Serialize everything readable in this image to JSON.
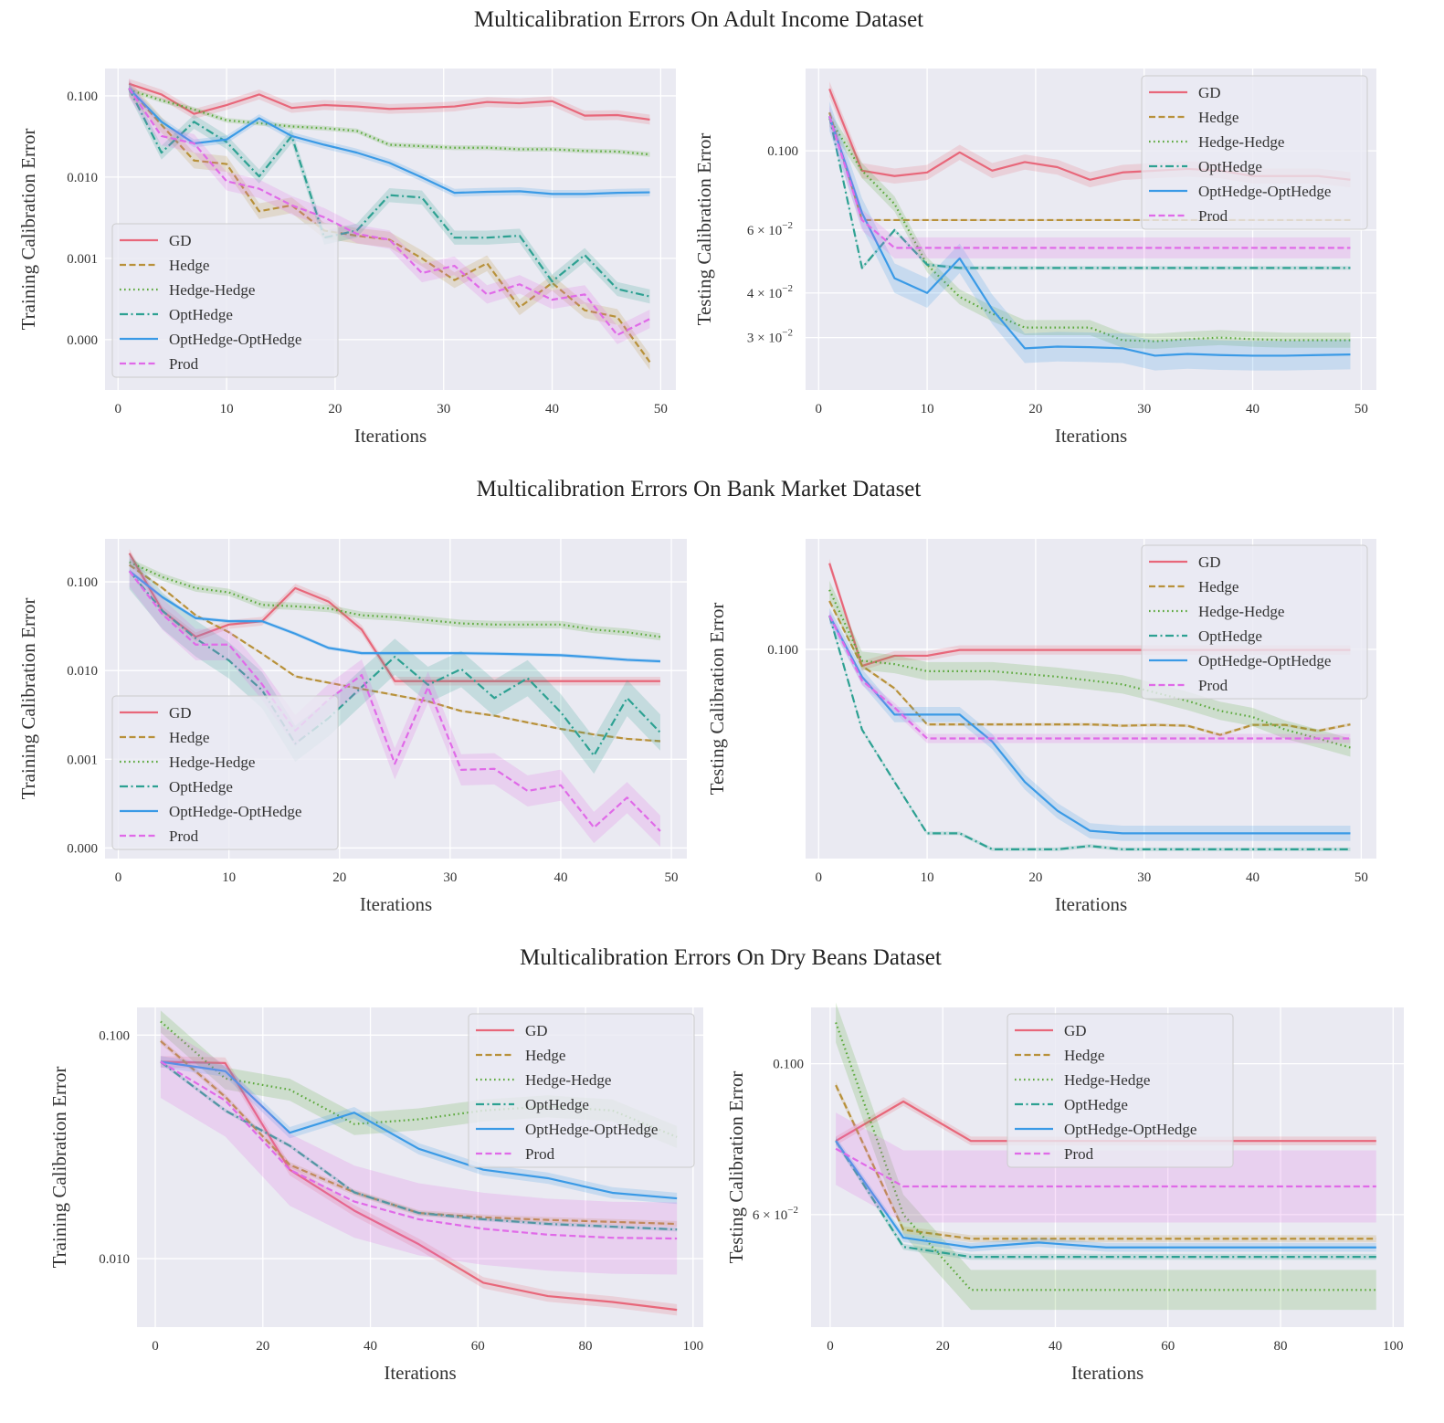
{
  "figure_titles": [
    "Multicalibration Errors On Adult Income Dataset",
    "Multicalibration Errors On Bank Market Dataset",
    "Multicalibration Errors On Dry Beans Dataset"
  ],
  "series_colors": {
    "GD": "#e8677a",
    "Hedge": "#b8913a",
    "Hedge-Hedge": "#5aa83a",
    "OptHedge": "#2da192",
    "OptHedge-OptHedge": "#3a9ae6",
    "Prod": "#e06ae8"
  },
  "series_styles": {
    "GD": "solid",
    "Hedge": "dashed",
    "Hedge-Hedge": "dotted",
    "OptHedge": "dashdot",
    "OptHedge-OptHedge": "solid",
    "Prod": "dashed"
  },
  "background": "#eaeaf2",
  "chart_data": [
    {
      "type": "line",
      "dataset_title_index": 0,
      "xlabel": "Iterations",
      "ylabel": "Training Calibration Error",
      "yscale": "log",
      "grid": true,
      "legend": "lower-left",
      "xlim": [
        -1.2,
        51.4
      ],
      "ylim": [
        2.4e-05,
        0.217
      ],
      "xticks": [
        0,
        10,
        20,
        30,
        40,
        50
      ],
      "yticks": [
        {
          "value": 0.1,
          "label": "0.100"
        },
        {
          "value": 0.01,
          "label": "0.010"
        },
        {
          "value": 0.001,
          "label": "0.001"
        },
        {
          "value": 0.0001,
          "label": "0.000"
        }
      ],
      "x": [
        1,
        4,
        7,
        10,
        13,
        16,
        19,
        22,
        25,
        28,
        31,
        34,
        37,
        40,
        43,
        46,
        49
      ],
      "series": [
        {
          "name": "GD",
          "ci": 1.15,
          "values": [
            0.141,
            0.104,
            0.06,
            0.077,
            0.104,
            0.071,
            0.077,
            0.074,
            0.069,
            0.071,
            0.074,
            0.084,
            0.081,
            0.086,
            0.057,
            0.058,
            0.051
          ]
        },
        {
          "name": "Hedge",
          "ci": 1.25,
          "values": [
            0.124,
            0.044,
            0.016,
            0.0145,
            0.0038,
            0.0045,
            0.0022,
            0.0019,
            0.0017,
            0.001,
            0.00054,
            0.00087,
            0.00025,
            0.0005,
            0.00023,
            0.00019,
            5.3e-05
          ]
        },
        {
          "name": "Hedge-Hedge",
          "ci": 1.07,
          "values": [
            0.119,
            0.088,
            0.068,
            0.05,
            0.046,
            0.042,
            0.04,
            0.037,
            0.025,
            0.024,
            0.023,
            0.023,
            0.022,
            0.022,
            0.021,
            0.0206,
            0.019
          ]
        },
        {
          "name": "OptHedge",
          "ci": 1.22,
          "values": [
            0.124,
            0.02,
            0.048,
            0.027,
            0.0102,
            0.032,
            0.0018,
            0.0022,
            0.006,
            0.0056,
            0.0018,
            0.0018,
            0.0019,
            0.00052,
            0.0011,
            0.00042,
            0.00034
          ]
        },
        {
          "name": "OptHedge-OptHedge",
          "ci": 1.12,
          "values": [
            0.124,
            0.048,
            0.026,
            0.029,
            0.053,
            0.032,
            0.025,
            0.02,
            0.015,
            0.0099,
            0.0064,
            0.0066,
            0.0067,
            0.0062,
            0.0062,
            0.0064,
            0.0065
          ]
        },
        {
          "name": "Prod",
          "ci": 1.3,
          "values": [
            0.124,
            0.032,
            0.026,
            0.0089,
            0.0072,
            0.0045,
            0.0032,
            0.002,
            0.0017,
            0.00066,
            0.00081,
            0.00036,
            0.00048,
            0.00031,
            0.00036,
            0.000114,
            0.00018
          ]
        }
      ]
    },
    {
      "type": "line",
      "dataset_title_index": 0,
      "xlabel": "Iterations",
      "ylabel": "Testing Calibration Error",
      "yscale": "log",
      "grid": true,
      "legend": "upper-right",
      "xlim": [
        -1.2,
        51.4
      ],
      "ylim": [
        0.0214,
        0.17
      ],
      "xticks": [
        0,
        10,
        20,
        30,
        40,
        50
      ],
      "yticks": [
        {
          "value": 0.1,
          "label": "0.100"
        },
        {
          "value": 0.06,
          "label": "6 × 10^−2"
        },
        {
          "value": 0.04,
          "label": "4 × 10^−2"
        },
        {
          "value": 0.03,
          "label": "3 × 10^−2"
        }
      ],
      "x": [
        1,
        4,
        7,
        10,
        13,
        16,
        19,
        22,
        25,
        28,
        31,
        34,
        37,
        40,
        43,
        46,
        49
      ],
      "series": [
        {
          "name": "GD",
          "ci": 1.05,
          "values": [
            0.149,
            0.088,
            0.085,
            0.087,
            0.099,
            0.088,
            0.093,
            0.09,
            0.083,
            0.087,
            0.088,
            0.089,
            0.088,
            0.085,
            0.085,
            0.085,
            0.083
          ]
        },
        {
          "name": "Hedge",
          "ci": 1.006,
          "values": [
            0.128,
            0.064,
            0.064,
            0.064,
            0.064,
            0.064,
            0.064,
            0.064,
            0.064,
            0.064,
            0.064,
            0.064,
            0.064,
            0.064,
            0.064,
            0.064,
            0.064
          ]
        },
        {
          "name": "Hedge-Hedge",
          "ci": 1.05,
          "values": [
            0.123,
            0.088,
            0.071,
            0.048,
            0.039,
            0.035,
            0.032,
            0.032,
            0.032,
            0.0295,
            0.0293,
            0.0297,
            0.03,
            0.0297,
            0.0295,
            0.0295,
            0.0295
          ]
        },
        {
          "name": "OptHedge",
          "ci": 1.012,
          "values": [
            0.125,
            0.047,
            0.06,
            0.048,
            0.047,
            0.047,
            0.047,
            0.047,
            0.047,
            0.047,
            0.047,
            0.047,
            0.047,
            0.047,
            0.047,
            0.047,
            0.047
          ]
        },
        {
          "name": "OptHedge-OptHedge",
          "ci": 1.1,
          "values": [
            0.125,
            0.067,
            0.044,
            0.04,
            0.05,
            0.036,
            0.028,
            0.0283,
            0.0282,
            0.028,
            0.0267,
            0.027,
            0.0268,
            0.0267,
            0.0267,
            0.0268,
            0.0269
          ]
        },
        {
          "name": "Prod",
          "ci": 1.07,
          "values": [
            0.125,
            0.064,
            0.0535,
            0.0535,
            0.0535,
            0.0535,
            0.0535,
            0.0535,
            0.0535,
            0.0535,
            0.0535,
            0.0535,
            0.0535,
            0.0535,
            0.0535,
            0.0535,
            0.0535
          ]
        }
      ]
    },
    {
      "type": "line",
      "dataset_title_index": 1,
      "xlabel": "Iterations",
      "ylabel": "Training Calibration Error",
      "yscale": "log",
      "grid": true,
      "legend": "lower-left",
      "xlim": [
        -1.2,
        51.4
      ],
      "ylim": [
        7.6e-05,
        0.305
      ],
      "xticks": [
        0,
        10,
        20,
        30,
        40,
        50
      ],
      "yticks": [
        {
          "value": 0.1,
          "label": "0.100"
        },
        {
          "value": 0.01,
          "label": "0.010"
        },
        {
          "value": 0.001,
          "label": "0.001"
        },
        {
          "value": 0.0001,
          "label": "0.000"
        }
      ],
      "x": [
        1,
        4,
        7,
        10,
        13,
        16,
        19,
        22,
        25,
        28,
        31,
        34,
        37,
        40,
        43,
        46,
        49
      ],
      "series": [
        {
          "name": "GD",
          "ci": 1.12,
          "values": [
            0.21,
            0.047,
            0.024,
            0.033,
            0.036,
            0.085,
            0.06,
            0.029,
            0.0076,
            0.0076,
            0.0076,
            0.0076,
            0.0076,
            0.0076,
            0.0076,
            0.0076,
            0.0076
          ]
        },
        {
          "name": "Hedge",
          "ci": 1.03,
          "values": [
            0.155,
            0.085,
            0.042,
            0.027,
            0.0155,
            0.0086,
            0.0073,
            0.0062,
            0.0053,
            0.0045,
            0.0035,
            0.0031,
            0.0026,
            0.0022,
            0.0019,
            0.0017,
            0.0016
          ]
        },
        {
          "name": "Hedge-Hedge",
          "ci": 1.1,
          "values": [
            0.167,
            0.113,
            0.085,
            0.076,
            0.055,
            0.053,
            0.05,
            0.042,
            0.04,
            0.037,
            0.034,
            0.033,
            0.033,
            0.033,
            0.029,
            0.027,
            0.024
          ]
        },
        {
          "name": "OptHedge",
          "ci": 1.6,
          "values": [
            0.132,
            0.047,
            0.023,
            0.013,
            0.006,
            0.0015,
            0.0029,
            0.0065,
            0.0143,
            0.0069,
            0.0104,
            0.0049,
            0.0082,
            0.0034,
            0.0011,
            0.0049,
            0.002
          ]
        },
        {
          "name": "OptHedge-OptHedge",
          "ci": 1.05,
          "values": [
            0.132,
            0.067,
            0.039,
            0.036,
            0.036,
            0.026,
            0.018,
            0.0157,
            0.0157,
            0.0157,
            0.0157,
            0.0155,
            0.0152,
            0.0149,
            0.0141,
            0.0132,
            0.0127
          ]
        },
        {
          "name": "Prod",
          "ci": 1.5,
          "values": [
            0.132,
            0.043,
            0.0196,
            0.0196,
            0.007,
            0.0021,
            0.0047,
            0.0089,
            0.00089,
            0.0065,
            0.00076,
            0.00078,
            0.00044,
            0.00051,
            0.00017,
            0.00037,
            0.000155
          ]
        }
      ]
    },
    {
      "type": "line",
      "dataset_title_index": 1,
      "xlabel": "Iterations",
      "ylabel": "Testing Calibration Error",
      "yscale": "log",
      "grid": true,
      "legend": "upper-right",
      "xlim": [
        -1.2,
        51.4
      ],
      "ylim": [
        0.0264,
        0.202
      ],
      "xticks": [
        0,
        10,
        20,
        30,
        40,
        50
      ],
      "yticks": [
        {
          "value": 0.1,
          "label": "0.100"
        }
      ],
      "x": [
        1,
        4,
        7,
        10,
        13,
        16,
        19,
        22,
        25,
        28,
        31,
        34,
        37,
        40,
        43,
        46,
        49
      ],
      "series": [
        {
          "name": "GD",
          "ci": 1.03,
          "values": [
            0.173,
            0.09,
            0.096,
            0.096,
            0.0996,
            0.0996,
            0.0996,
            0.0996,
            0.0996,
            0.0996,
            0.0996,
            0.0996,
            0.0996,
            0.0996,
            0.0996,
            0.0996,
            0.0996
          ]
        },
        {
          "name": "Hedge",
          "ci": 1.01,
          "values": [
            0.136,
            0.09,
            0.078,
            0.062,
            0.062,
            0.062,
            0.062,
            0.062,
            0.062,
            0.0615,
            0.0618,
            0.0615,
            0.058,
            0.0618,
            0.0618,
            0.0595,
            0.062
          ]
        },
        {
          "name": "Hedge-Hedge",
          "ci": 1.06,
          "values": [
            0.146,
            0.093,
            0.091,
            0.087,
            0.087,
            0.087,
            0.0855,
            0.084,
            0.082,
            0.08,
            0.076,
            0.072,
            0.0676,
            0.065,
            0.06,
            0.0567,
            0.0535
          ]
        },
        {
          "name": "OptHedge",
          "ci": 1.012,
          "values": [
            0.124,
            0.06,
            0.043,
            0.031,
            0.031,
            0.028,
            0.028,
            0.028,
            0.0286,
            0.028,
            0.028,
            0.028,
            0.028,
            0.028,
            0.028,
            0.028,
            0.028
          ]
        },
        {
          "name": "OptHedge-OptHedge",
          "ci": 1.05,
          "values": [
            0.124,
            0.084,
            0.066,
            0.066,
            0.066,
            0.0556,
            0.043,
            0.0358,
            0.0315,
            0.031,
            0.031,
            0.031,
            0.031,
            0.031,
            0.031,
            0.031,
            0.031
          ]
        },
        {
          "name": "Prod",
          "ci": 1.03,
          "values": [
            0.124,
            0.082,
            0.069,
            0.0567,
            0.0567,
            0.0567,
            0.0567,
            0.0567,
            0.0567,
            0.0567,
            0.0567,
            0.0567,
            0.0567,
            0.0567,
            0.0567,
            0.0567,
            0.0567
          ]
        }
      ]
    },
    {
      "type": "line",
      "dataset_title_index": 2,
      "xlabel": "Iterations",
      "ylabel": "Training Calibration Error",
      "yscale": "log",
      "grid": true,
      "legend": "upper-right",
      "xlim": [
        -3.4,
        101.9
      ],
      "ylim": [
        0.00494,
        0.133
      ],
      "xticks": [
        0,
        20,
        40,
        60,
        80,
        100
      ],
      "yticks": [
        {
          "value": 0.1,
          "label": "0.100"
        },
        {
          "value": 0.01,
          "label": "0.010"
        }
      ],
      "x": [
        1,
        13,
        25,
        37,
        49,
        61,
        73,
        85,
        97
      ],
      "series": [
        {
          "name": "GD",
          "ci": 1.06,
          "values": [
            0.076,
            0.075,
            0.025,
            0.0164,
            0.0116,
            0.0078,
            0.0068,
            0.0064,
            0.0059
          ]
        },
        {
          "name": "Hedge",
          "ci": 1.03,
          "values": [
            0.094,
            0.053,
            0.0263,
            0.0198,
            0.016,
            0.0153,
            0.0149,
            0.0146,
            0.0143
          ]
        },
        {
          "name": "Hedge-Hedge",
          "ci": 1.12,
          "values": [
            0.115,
            0.064,
            0.057,
            0.04,
            0.042,
            0.046,
            0.048,
            0.046,
            0.035
          ]
        },
        {
          "name": "OptHedge",
          "ci": 1.02,
          "values": [
            0.076,
            0.046,
            0.032,
            0.0198,
            0.016,
            0.015,
            0.0143,
            0.0139,
            0.0135
          ]
        },
        {
          "name": "OptHedge-OptHedge",
          "ci": 1.06,
          "values": [
            0.076,
            0.069,
            0.0366,
            0.045,
            0.031,
            0.025,
            0.0229,
            0.0197,
            0.0186
          ]
        },
        {
          "name": "Prod",
          "ci": 1.45,
          "values": [
            0.076,
            0.051,
            0.025,
            0.018,
            0.015,
            0.0136,
            0.0128,
            0.0124,
            0.0123
          ]
        }
      ]
    },
    {
      "type": "line",
      "dataset_title_index": 2,
      "xlabel": "Iterations",
      "ylabel": "Testing Calibration Error",
      "yscale": "log",
      "grid": true,
      "legend": "upper-left",
      "xlim": [
        -3.4,
        101.9
      ],
      "ylim": [
        0.041,
        0.121
      ],
      "xticks": [
        0,
        20,
        40,
        60,
        80,
        100
      ],
      "yticks": [
        {
          "value": 0.1,
          "label": "0.100"
        },
        {
          "value": 0.06,
          "label": "6 × 10^−2"
        }
      ],
      "x": [
        1,
        13,
        25,
        37,
        49,
        61,
        73,
        85,
        97
      ],
      "series": [
        {
          "name": "GD",
          "ci": 1.015,
          "values": [
            0.077,
            0.088,
            0.077,
            0.077,
            0.077,
            0.077,
            0.077,
            0.077,
            0.077
          ]
        },
        {
          "name": "Hedge",
          "ci": 1.012,
          "values": [
            0.093,
            0.057,
            0.0553,
            0.0553,
            0.0553,
            0.0553,
            0.0553,
            0.0553,
            0.0553
          ]
        },
        {
          "name": "Hedge-Hedge",
          "ci": 1.07,
          "values": [
            0.115,
            0.06,
            0.0465,
            0.0465,
            0.0465,
            0.0465,
            0.0465,
            0.0465,
            0.0465
          ]
        },
        {
          "name": "OptHedge",
          "ci": 1.01,
          "values": [
            0.077,
            0.0538,
            0.052,
            0.052,
            0.052,
            0.052,
            0.052,
            0.052,
            0.052
          ]
        },
        {
          "name": "OptHedge-OptHedge",
          "ci": 1.015,
          "values": [
            0.077,
            0.0555,
            0.0537,
            0.0546,
            0.0537,
            0.0537,
            0.0537,
            0.0537,
            0.0537
          ]
        },
        {
          "name": "Prod",
          "ci": 1.13,
          "values": [
            0.075,
            0.066,
            0.066,
            0.066,
            0.066,
            0.066,
            0.066,
            0.066,
            0.066
          ]
        }
      ]
    }
  ]
}
